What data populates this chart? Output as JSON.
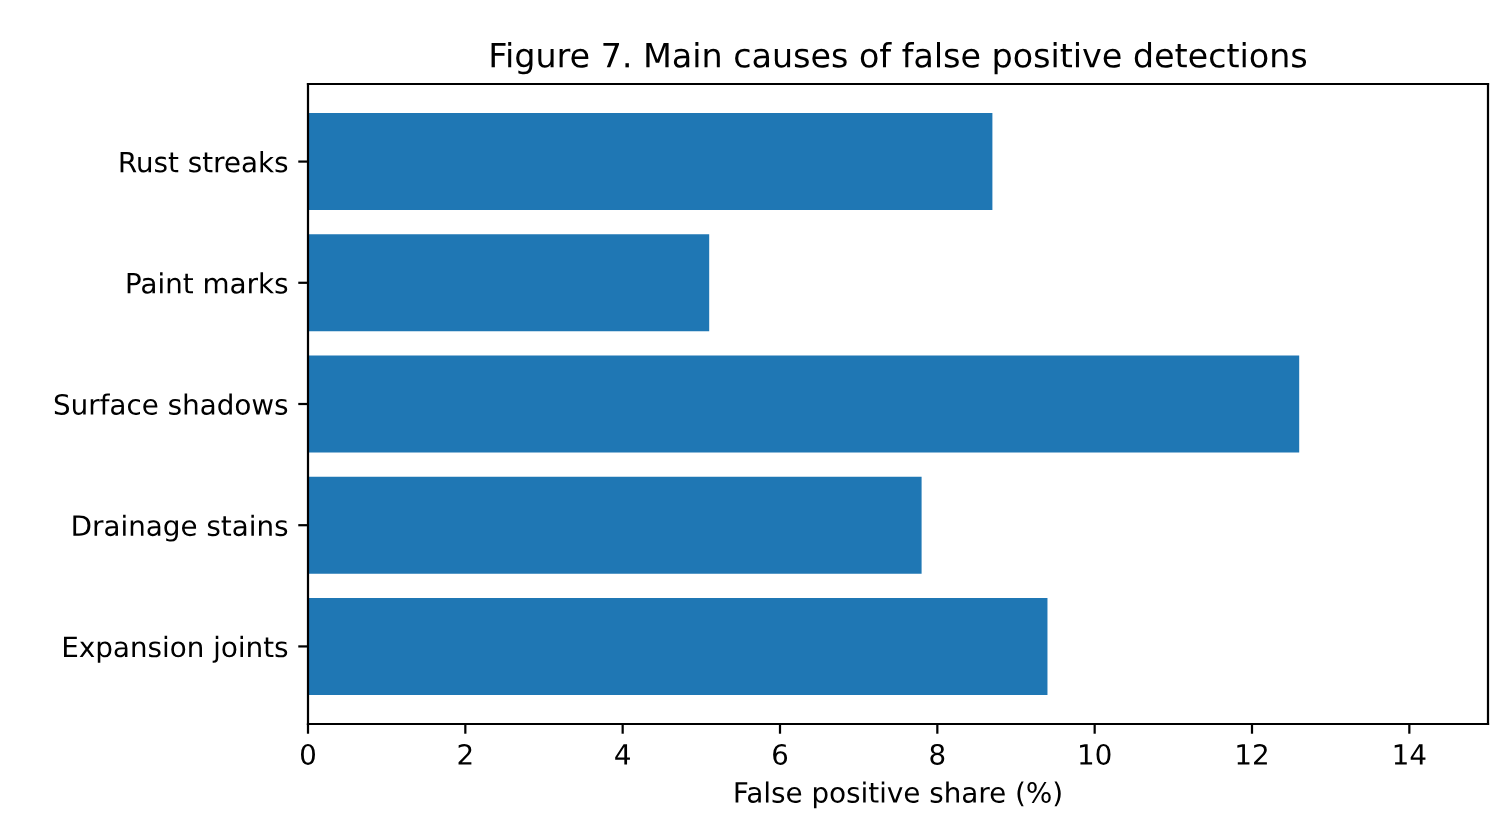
{
  "chart_data": {
    "type": "bar",
    "orientation": "horizontal",
    "title": "Figure 7. Main causes of false positive detections",
    "xlabel": "False positive share (%)",
    "categories": [
      "Rust streaks",
      "Paint marks",
      "Surface shadows",
      "Drainage stains",
      "Expansion joints"
    ],
    "values": [
      8.7,
      5.1,
      12.6,
      7.8,
      9.4
    ],
    "color": "#1f77b4",
    "xlim": [
      0,
      15
    ],
    "xticks": [
      0,
      2,
      4,
      6,
      8,
      10,
      12,
      14
    ],
    "grid": false
  }
}
